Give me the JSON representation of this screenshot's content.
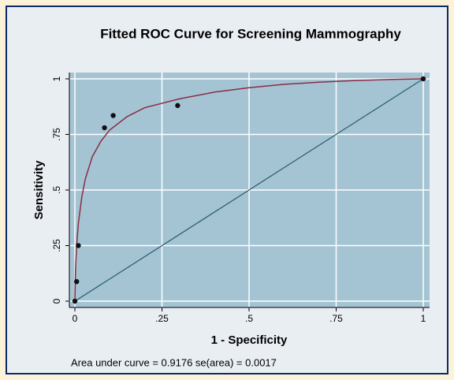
{
  "chart_data": {
    "type": "scatter",
    "title": "Fitted ROC Curve for Screening Mammography",
    "x_label": "1 - Specificity",
    "y_label": "Sensitivity",
    "annotation": "Area under curve = 0.9176  se(area) = 0.0017",
    "xlim": [
      0,
      1
    ],
    "ylim": [
      0,
      1
    ],
    "xticks": [
      0,
      {
        "value": 0.25,
        "label": ".25"
      },
      {
        "value": 0.5,
        "label": ".5"
      },
      {
        "value": 0.75,
        "label": ".75"
      },
      1
    ],
    "yticks": [
      0,
      {
        "value": 0.25,
        "label": ".25"
      },
      {
        "value": 0.5,
        "label": ".5"
      },
      {
        "value": 0.75,
        "label": ".75"
      },
      1
    ],
    "grid": true,
    "points": {
      "color": "#111111",
      "x": [
        0,
        0.005,
        0.01,
        0.085,
        0.11,
        0.295,
        1
      ],
      "y": [
        0,
        0.088,
        0.25,
        0.78,
        0.835,
        0.88,
        1
      ]
    },
    "curve": {
      "color": "#8b2c44",
      "x": [
        0,
        0.002,
        0.005,
        0.01,
        0.02,
        0.03,
        0.05,
        0.075,
        0.1,
        0.15,
        0.2,
        0.3,
        0.4,
        0.5,
        0.6,
        0.7,
        0.8,
        0.9,
        1
      ],
      "y": [
        0,
        0.15,
        0.25,
        0.35,
        0.47,
        0.55,
        0.65,
        0.72,
        0.77,
        0.83,
        0.87,
        0.91,
        0.94,
        0.96,
        0.975,
        0.985,
        0.992,
        0.997,
        1
      ]
    },
    "reference": {
      "color": "#2f6272",
      "x": [
        0,
        1
      ],
      "y": [
        0,
        1
      ]
    }
  }
}
